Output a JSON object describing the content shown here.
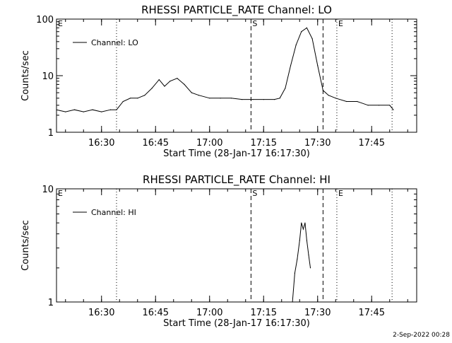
{
  "chart_data": [
    {
      "type": "line",
      "title": "RHESSI PARTICLE_RATE Channel: LO",
      "xlabel": "Start Time (28-Jan-17 16:17:30)",
      "ylabel": "Counts/sec",
      "y_scale": "log",
      "ylim": [
        1,
        100
      ],
      "xlim": [
        "16:17:30",
        "17:57:30"
      ],
      "x_ticks": [
        "16:30",
        "16:45",
        "17:00",
        "17:15",
        "17:30",
        "17:45"
      ],
      "y_ticks": [
        "1",
        "10",
        "100"
      ],
      "legend": {
        "placement": "top-left",
        "entries": [
          "Channel: LO"
        ]
      },
      "markers": [
        {
          "label": "E",
          "time": "16:17:30",
          "style": "dotted"
        },
        {
          "label": "",
          "time": "16:34:10",
          "style": "dotted"
        },
        {
          "label": "S",
          "time": "17:11:30",
          "style": "dashed"
        },
        {
          "label": "",
          "time": "17:31:30",
          "style": "dashed"
        },
        {
          "label": "E",
          "time": "17:35:20",
          "style": "dotted"
        },
        {
          "label": "",
          "time": "17:50:40",
          "style": "dotted"
        }
      ],
      "series": [
        {
          "name": "Channel: LO",
          "x": [
            "16:17:30",
            "16:20:00",
            "16:22:30",
            "16:25:00",
            "16:27:30",
            "16:30:00",
            "16:32:30",
            "16:34:10",
            "16:36:00",
            "16:38:00",
            "16:40:00",
            "16:42:00",
            "16:44:00",
            "16:46:00",
            "16:47:30",
            "16:49:00",
            "16:51:00",
            "16:53:00",
            "16:55:00",
            "16:57:00",
            "17:00:00",
            "17:03:00",
            "17:06:00",
            "17:09:00",
            "17:12:00",
            "17:15:00",
            "17:18:00",
            "17:19:30",
            "17:21:00",
            "17:22:30",
            "17:24:00",
            "17:25:30",
            "17:27:00",
            "17:28:30",
            "17:30:00",
            "17:31:30",
            "17:33:00",
            "17:35:00",
            "17:38:00",
            "17:41:00",
            "17:44:00",
            "17:47:00",
            "17:50:00",
            "17:51:00"
          ],
          "values": [
            2.5,
            2.3,
            2.5,
            2.3,
            2.5,
            2.3,
            2.5,
            2.5,
            3.5,
            4,
            4,
            4.5,
            6,
            8.5,
            6.5,
            8,
            9,
            7,
            5,
            4.5,
            4,
            4,
            4,
            3.8,
            3.8,
            3.8,
            3.8,
            4,
            6,
            15,
            35,
            60,
            70,
            45,
            15,
            5.5,
            4.5,
            4,
            3.5,
            3.5,
            3,
            3,
            3,
            2.5
          ]
        }
      ]
    },
    {
      "type": "line",
      "title": "RHESSI PARTICLE_RATE Channel: HI",
      "xlabel": "Start Time (28-Jan-17 16:17:30)",
      "ylabel": "Counts/sec",
      "y_scale": "log",
      "ylim": [
        1,
        10
      ],
      "xlim": [
        "16:17:30",
        "17:57:30"
      ],
      "x_ticks": [
        "16:30",
        "16:45",
        "17:00",
        "17:15",
        "17:30",
        "17:45"
      ],
      "y_ticks": [
        "1",
        "10"
      ],
      "legend": {
        "placement": "top-left",
        "entries": [
          "Channel: HI"
        ]
      },
      "markers": [
        {
          "label": "E",
          "time": "16:17:30",
          "style": "dotted"
        },
        {
          "label": "",
          "time": "16:34:10",
          "style": "dotted"
        },
        {
          "label": "S",
          "time": "17:11:30",
          "style": "dashed"
        },
        {
          "label": "",
          "time": "17:31:30",
          "style": "dashed"
        },
        {
          "label": "E",
          "time": "17:35:20",
          "style": "dotted"
        },
        {
          "label": "",
          "time": "17:50:40",
          "style": "dotted"
        }
      ],
      "series": [
        {
          "name": "Channel: HI",
          "x": [
            "17:23:00",
            "17:23:40",
            "17:24:20",
            "17:25:00",
            "17:25:30",
            "17:26:00",
            "17:26:30",
            "17:27:00",
            "17:27:30",
            "17:28:00"
          ],
          "values": [
            1.0,
            1.8,
            2.4,
            3.5,
            5.0,
            4.4,
            5.0,
            3.5,
            2.6,
            2.0
          ]
        }
      ]
    }
  ],
  "footer": {
    "timestamp": "2-Sep-2022 00:28"
  }
}
